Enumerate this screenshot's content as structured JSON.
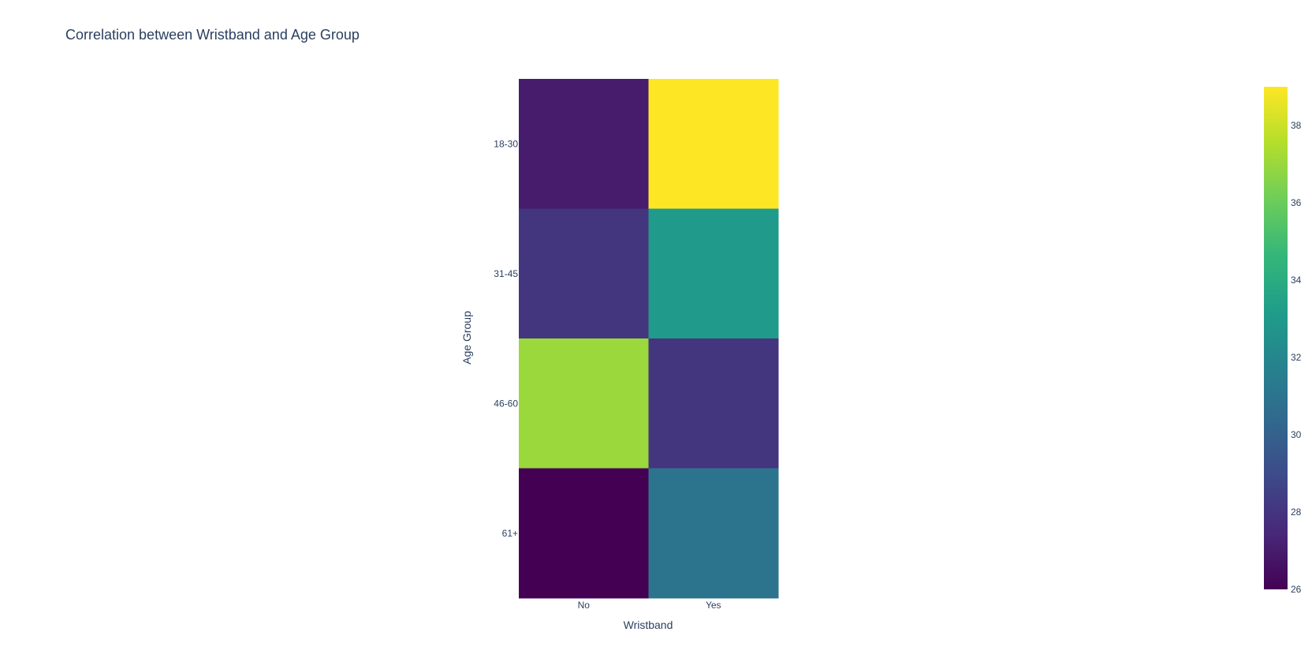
{
  "chart_data": {
    "type": "heatmap",
    "title": "Correlation between Wristband and Age Group",
    "xlabel": "Wristband",
    "ylabel": "Age Group",
    "x_categories": [
      "No",
      "Yes"
    ],
    "y_categories": [
      "18-30",
      "31-45",
      "46-60",
      "61+"
    ],
    "z": [
      [
        27,
        39
      ],
      [
        28,
        33
      ],
      [
        37,
        28
      ],
      [
        26,
        31
      ]
    ],
    "colorscale": "Viridis",
    "zlim": [
      26,
      39
    ],
    "colorbar": {
      "ticks": [
        26,
        28,
        30,
        32,
        34,
        36,
        38
      ],
      "tick_labels": [
        "26",
        "28",
        "30",
        "32",
        "34",
        "36",
        "38"
      ]
    },
    "grid": false
  }
}
